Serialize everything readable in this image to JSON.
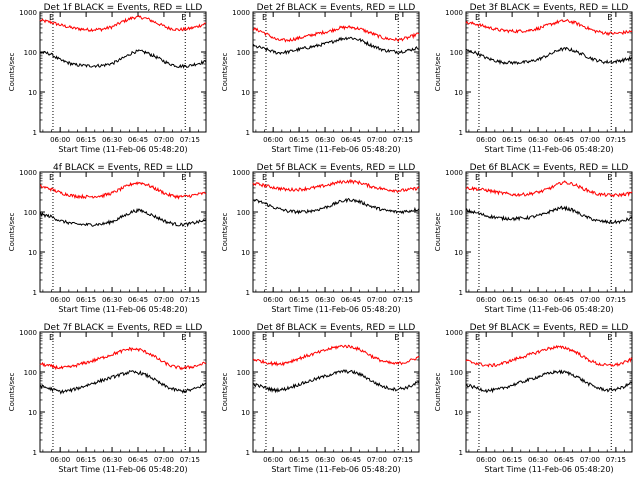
{
  "xlabel": "Start Time (11-Feb-06 05:48:20)",
  "ylabel": "Counts/sec",
  "x_ticks": [
    "06:00",
    "06:15",
    "06:30",
    "06:45",
    "07:00",
    "07:15"
  ],
  "x_tick_minutes": [
    11.67,
    26.67,
    41.67,
    56.67,
    71.67,
    86.67
  ],
  "x_range_minutes": [
    0,
    96
  ],
  "y_ticks": [
    "1",
    "10",
    "100",
    "1000"
  ],
  "y_tick_values": [
    1,
    10,
    100,
    1000
  ],
  "ylim": [
    1,
    1000
  ],
  "colors": {
    "events": "#000000",
    "lld": "#ff0000"
  },
  "chart_data": [
    {
      "type": "line",
      "title": "Det 1f BLACK = Events, RED = LLD",
      "marker_e": "E",
      "marker_minutes": [
        7.5,
        84.0
      ],
      "series": [
        {
          "color": "#ff0000",
          "x": [
            0,
            6,
            12,
            20,
            28,
            36,
            42,
            48,
            54,
            58,
            62,
            68,
            74,
            80,
            86,
            90,
            96
          ],
          "values": [
            620,
            560,
            470,
            390,
            360,
            370,
            430,
            580,
            730,
            740,
            680,
            520,
            400,
            360,
            380,
            420,
            520
          ]
        },
        {
          "color": "#000000",
          "x": [
            0,
            6,
            12,
            20,
            28,
            36,
            42,
            48,
            54,
            58,
            62,
            68,
            74,
            80,
            86,
            90,
            96
          ],
          "values": [
            100,
            90,
            62,
            48,
            45,
            46,
            52,
            70,
            100,
            105,
            95,
            72,
            52,
            44,
            45,
            50,
            58
          ]
        }
      ]
    },
    {
      "type": "line",
      "title": "Det 2f BLACK = Events, RED = LLD",
      "marker_e": "E",
      "marker_minutes": [
        7.5,
        84.0
      ],
      "series": [
        {
          "color": "#ff0000",
          "x": [
            0,
            4,
            8,
            14,
            20,
            28,
            36,
            44,
            50,
            56,
            62,
            68,
            76,
            84,
            90,
            96
          ],
          "values": [
            380,
            340,
            280,
            200,
            195,
            230,
            280,
            330,
            400,
            420,
            380,
            300,
            220,
            200,
            230,
            290
          ]
        },
        {
          "color": "#000000",
          "x": [
            0,
            4,
            8,
            14,
            20,
            28,
            36,
            44,
            50,
            56,
            62,
            68,
            76,
            84,
            90,
            96
          ],
          "values": [
            140,
            130,
            115,
            95,
            100,
            120,
            140,
            170,
            210,
            230,
            200,
            150,
            110,
            100,
            110,
            130
          ]
        }
      ]
    },
    {
      "type": "line",
      "title": "Det 3f BLACK = Events, RED = LLD",
      "marker_e": "E",
      "marker_minutes": [
        7.5,
        84.0
      ],
      "series": [
        {
          "color": "#ff0000",
          "x": [
            0,
            6,
            12,
            20,
            28,
            36,
            42,
            48,
            54,
            58,
            62,
            68,
            74,
            80,
            86,
            90,
            96
          ],
          "values": [
            540,
            500,
            420,
            350,
            330,
            345,
            390,
            480,
            580,
            600,
            560,
            440,
            340,
            300,
            290,
            300,
            330
          ]
        },
        {
          "color": "#000000",
          "x": [
            0,
            6,
            12,
            20,
            28,
            36,
            42,
            48,
            54,
            58,
            62,
            68,
            74,
            80,
            86,
            90,
            96
          ],
          "values": [
            110,
            95,
            70,
            56,
            54,
            56,
            66,
            85,
            115,
            120,
            110,
            85,
            65,
            56,
            57,
            62,
            70
          ]
        }
      ]
    },
    {
      "type": "line",
      "title": "4f BLACK = Events, RED = LLD",
      "marker_e": "E",
      "marker_minutes": [
        7.5,
        84.0
      ],
      "series": [
        {
          "color": "#ff0000",
          "x": [
            0,
            6,
            12,
            20,
            28,
            36,
            42,
            48,
            54,
            58,
            62,
            68,
            74,
            80,
            86,
            90,
            96
          ],
          "values": [
            440,
            380,
            300,
            250,
            240,
            255,
            300,
            400,
            520,
            540,
            480,
            360,
            270,
            240,
            250,
            270,
            300
          ]
        },
        {
          "color": "#000000",
          "x": [
            0,
            6,
            12,
            20,
            28,
            36,
            42,
            48,
            54,
            58,
            62,
            68,
            74,
            80,
            86,
            90,
            96
          ],
          "values": [
            88,
            78,
            60,
            50,
            48,
            50,
            58,
            78,
            105,
            110,
            95,
            72,
            55,
            48,
            50,
            55,
            62
          ]
        }
      ]
    },
    {
      "type": "line",
      "title": "Det 5f BLACK = Events, RED = LLD",
      "marker_e": "E",
      "marker_minutes": [
        7.5,
        84.0
      ],
      "series": [
        {
          "color": "#ff0000",
          "x": [
            0,
            6,
            12,
            20,
            28,
            36,
            44,
            50,
            56,
            62,
            68,
            76,
            84,
            90,
            96
          ],
          "values": [
            520,
            470,
            410,
            360,
            370,
            410,
            480,
            560,
            590,
            540,
            440,
            370,
            340,
            360,
            400
          ]
        },
        {
          "color": "#000000",
          "x": [
            0,
            6,
            12,
            20,
            28,
            36,
            44,
            50,
            56,
            62,
            68,
            76,
            84,
            90,
            96
          ],
          "values": [
            200,
            170,
            130,
            105,
            100,
            110,
            140,
            180,
            205,
            180,
            140,
            110,
            100,
            105,
            120
          ]
        }
      ]
    },
    {
      "type": "line",
      "title": "Det 6f BLACK = Events, RED = LLD",
      "marker_e": "E",
      "marker_minutes": [
        7.5,
        84.0
      ],
      "series": [
        {
          "color": "#ff0000",
          "x": [
            0,
            6,
            12,
            20,
            28,
            36,
            44,
            50,
            56,
            62,
            68,
            76,
            84,
            90,
            96
          ],
          "values": [
            400,
            380,
            350,
            300,
            270,
            280,
            330,
            420,
            560,
            500,
            380,
            280,
            260,
            270,
            300
          ]
        },
        {
          "color": "#000000",
          "x": [
            0,
            6,
            12,
            20,
            28,
            36,
            44,
            50,
            56,
            62,
            68,
            76,
            84,
            90,
            96
          ],
          "values": [
            110,
            95,
            80,
            70,
            68,
            72,
            85,
            110,
            130,
            110,
            80,
            60,
            55,
            58,
            70
          ]
        }
      ]
    },
    {
      "type": "line",
      "title": "Det 7f BLACK = Events, RED = LLD",
      "marker_e": "E",
      "marker_minutes": [
        7.5,
        84.0
      ],
      "series": [
        {
          "color": "#ff0000",
          "x": [
            0,
            6,
            12,
            18,
            24,
            32,
            40,
            46,
            52,
            58,
            64,
            70,
            76,
            82,
            88,
            92,
            96
          ],
          "values": [
            160,
            140,
            125,
            135,
            160,
            200,
            260,
            320,
            380,
            360,
            280,
            190,
            140,
            125,
            135,
            150,
            170
          ]
        },
        {
          "color": "#000000",
          "x": [
            0,
            6,
            12,
            18,
            24,
            32,
            40,
            46,
            52,
            58,
            64,
            70,
            76,
            82,
            88,
            92,
            96
          ],
          "values": [
            45,
            38,
            32,
            35,
            42,
            55,
            70,
            85,
            100,
            95,
            75,
            50,
            38,
            33,
            36,
            42,
            52
          ]
        }
      ]
    },
    {
      "type": "line",
      "title": "Det 8f BLACK = Events, RED = LLD",
      "marker_e": "E",
      "marker_minutes": [
        7.5,
        84.0
      ],
      "series": [
        {
          "color": "#ff0000",
          "x": [
            0,
            6,
            12,
            18,
            24,
            32,
            40,
            46,
            52,
            58,
            64,
            70,
            76,
            82,
            88,
            92,
            96
          ],
          "values": [
            210,
            180,
            160,
            165,
            200,
            260,
            330,
            400,
            450,
            420,
            330,
            230,
            180,
            160,
            175,
            200,
            240
          ]
        },
        {
          "color": "#000000",
          "x": [
            0,
            6,
            12,
            18,
            24,
            32,
            40,
            46,
            52,
            58,
            64,
            70,
            76,
            82,
            88,
            92,
            96
          ],
          "values": [
            50,
            42,
            35,
            37,
            45,
            58,
            75,
            90,
            105,
            100,
            80,
            55,
            42,
            37,
            40,
            46,
            58
          ]
        }
      ]
    },
    {
      "type": "line",
      "title": "Det 9f BLACK = Events, RED = LLD",
      "marker_e": "E",
      "marker_minutes": [
        7.5,
        84.0
      ],
      "series": [
        {
          "color": "#ff0000",
          "x": [
            0,
            6,
            12,
            18,
            24,
            32,
            40,
            46,
            52,
            58,
            64,
            70,
            76,
            82,
            88,
            92,
            96
          ],
          "values": [
            190,
            165,
            145,
            150,
            180,
            235,
            300,
            370,
            420,
            400,
            310,
            210,
            160,
            145,
            155,
            175,
            210
          ]
        },
        {
          "color": "#000000",
          "x": [
            0,
            6,
            12,
            18,
            24,
            32,
            40,
            46,
            52,
            58,
            64,
            70,
            76,
            82,
            88,
            92,
            96
          ],
          "values": [
            48,
            40,
            34,
            36,
            43,
            56,
            72,
            88,
            102,
            98,
            78,
            53,
            40,
            35,
            38,
            44,
            55
          ]
        }
      ]
    }
  ]
}
